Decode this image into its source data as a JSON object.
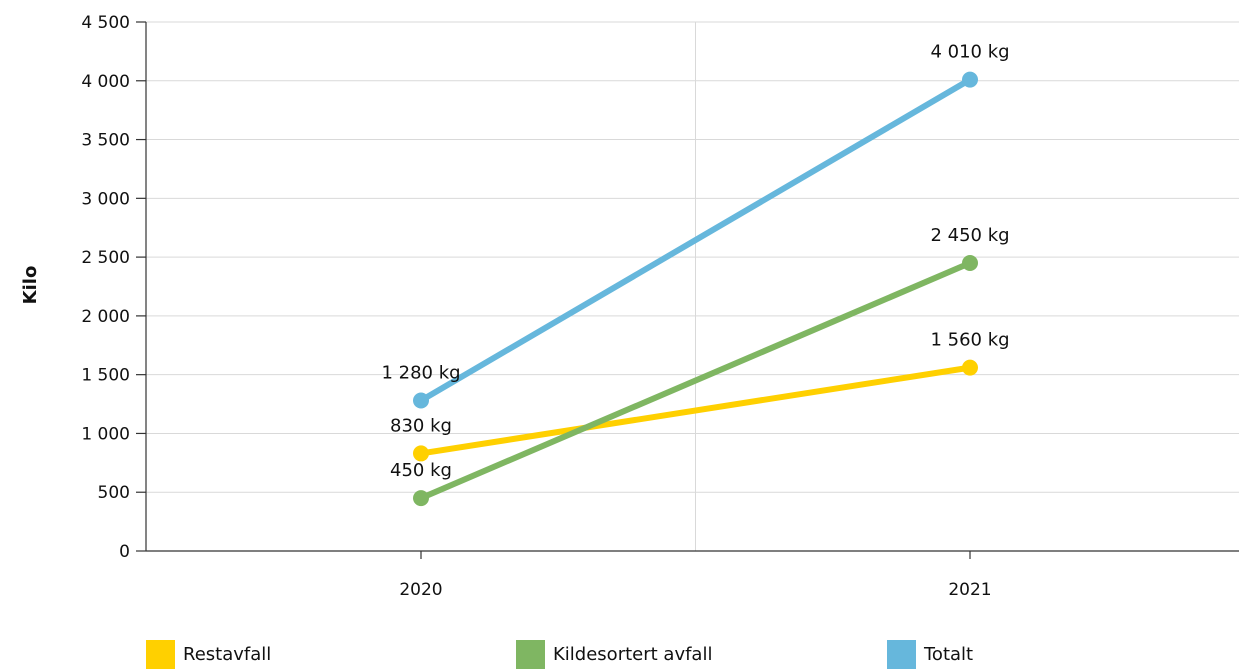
{
  "chart_data": {
    "type": "line",
    "categories": [
      "2020",
      "2021"
    ],
    "ylabel": "Kilo",
    "ylim": [
      0,
      4500
    ],
    "yticks": [
      0,
      500,
      1000,
      1500,
      2000,
      2500,
      3000,
      3500,
      4000,
      4500
    ],
    "ytick_labels": [
      "0",
      "500",
      "1 000",
      "1 500",
      "2 000",
      "2 500",
      "3 000",
      "3 500",
      "4 000",
      "4 500"
    ],
    "grid": true,
    "legend_position": "bottom",
    "series": [
      {
        "name": "Restavfall",
        "color": "#FFD000",
        "values": [
          830,
          1560
        ],
        "labels": [
          "830 kg",
          "1 560 kg"
        ]
      },
      {
        "name": "Kildesortert avfall",
        "color": "#7FB662",
        "values": [
          450,
          2450
        ],
        "labels": [
          "450 kg",
          "2 450 kg"
        ]
      },
      {
        "name": "Totalt",
        "color": "#66B7DC",
        "values": [
          1280,
          4010
        ],
        "labels": [
          "1 280 kg",
          "4 010 kg"
        ]
      }
    ]
  }
}
